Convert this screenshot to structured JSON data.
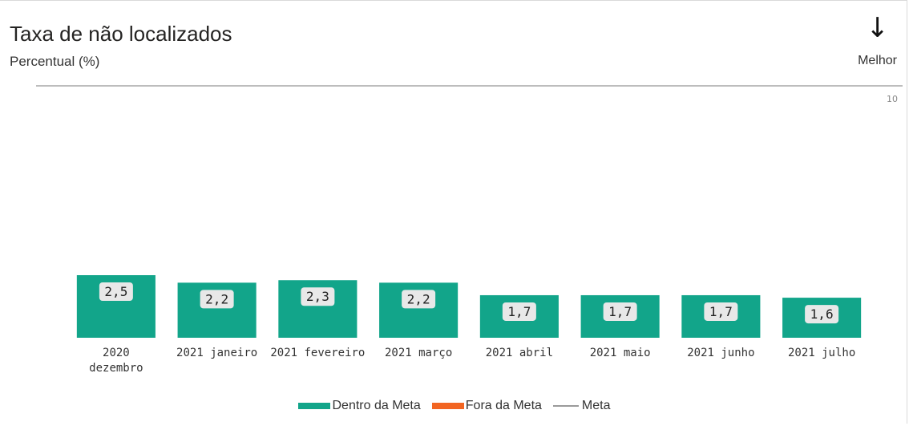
{
  "title": "Taxa de não localizados",
  "subtitle": "Percentual (%)",
  "direction_icon": "↓",
  "direction_label": "Melhor",
  "chart_data": {
    "type": "bar",
    "categories": [
      "2020\ndezembro",
      "2021 janeiro",
      "2021 fevereiro",
      "2021 março",
      "2021 abril",
      "2021 maio",
      "2021 junho",
      "2021 julho"
    ],
    "series": [
      {
        "name": "Dentro da Meta",
        "color": "#12a58a",
        "values": [
          2.5,
          2.2,
          2.3,
          2.2,
          1.7,
          1.7,
          1.7,
          1.6
        ],
        "value_labels": [
          "2,5",
          "2,2",
          "2,3",
          "2,2",
          "1,7",
          "1,7",
          "1,7",
          "1,6"
        ]
      },
      {
        "name": "Fora da Meta",
        "color": "#f26522",
        "values": [
          null,
          null,
          null,
          null,
          null,
          null,
          null,
          null
        ]
      }
    ],
    "target_line": {
      "name": "Meta",
      "color": "#9a9a9a"
    },
    "ylim": [
      0,
      10
    ],
    "yticks": [
      10
    ]
  }
}
